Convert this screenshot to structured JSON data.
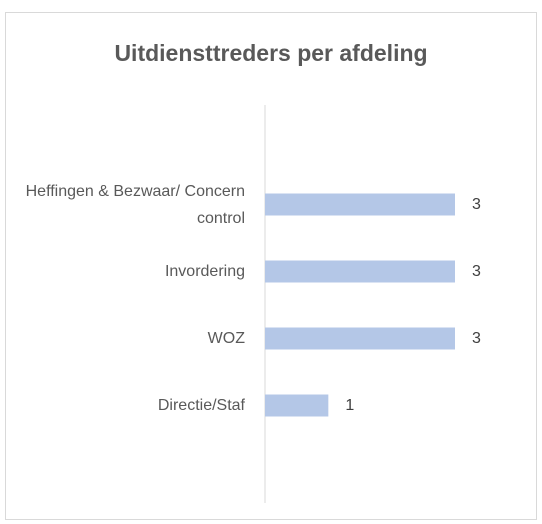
{
  "chart_data": {
    "type": "bar",
    "orientation": "horizontal",
    "title": "Uitdiensttreders per afdeling",
    "categories": [
      "Heffingen & Bezwaar/ Concern control",
      "Invordering",
      "WOZ",
      "Directie/Staf"
    ],
    "values": [
      3,
      3,
      3,
      1
    ],
    "color": "#b4c7e7",
    "xlim": [
      0,
      3
    ],
    "grid": false
  }
}
